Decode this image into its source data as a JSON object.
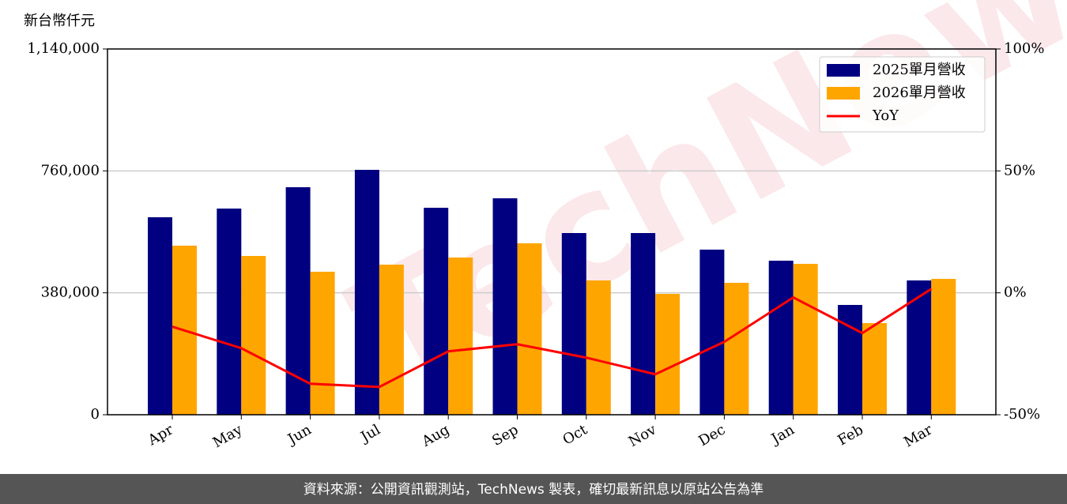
{
  "chart_data": {
    "type": "bar",
    "y_label": "新台幣仟元",
    "watermark": "TechNews",
    "footer": "資料來源：公開資訊觀測站，TechNews 製表，確切最新訊息以原站公告為準",
    "categories": [
      "Apr",
      "May",
      "Jun",
      "Jul",
      "Aug",
      "Sep",
      "Oct",
      "Nov",
      "Dec",
      "Jan",
      "Feb",
      "Mar"
    ],
    "series": [
      {
        "name": "2025單月營收",
        "color": "#000080",
        "values": [
          615500,
          642600,
          709100,
          763300,
          645100,
          674600,
          566300,
          566300,
          514600,
          480100,
          342200,
          418600
        ]
      },
      {
        "name": "2026單月營收",
        "color": "#ffa500",
        "values": [
          526900,
          494900,
          445700,
          467800,
          490000,
          534300,
          418600,
          376700,
          411200,
          470300,
          285600,
          423500
        ]
      },
      {
        "name": "YoY",
        "color": "#ff0000",
        "type": "line",
        "axis": "y2",
        "values": [
          -13.9,
          -22.7,
          -37.3,
          -38.6,
          -24.0,
          -21.1,
          -26.6,
          -33.4,
          -20.1,
          -1.9,
          -16.5,
          1.6
        ]
      }
    ],
    "ylim": [
      0,
      1140000
    ],
    "yticks": [
      0,
      {
        "value": 380000,
        "label": "380,000"
      },
      {
        "value": 760000,
        "label": "760,000"
      },
      {
        "value": 1140000,
        "label": "1,140,000"
      }
    ],
    "y2lim": [
      -50,
      100
    ],
    "y2ticks": [
      {
        "value": -50,
        "label": "-50%"
      },
      {
        "value": 0,
        "label": "0%"
      },
      {
        "value": 50,
        "label": "50%"
      },
      {
        "value": 100,
        "label": "100%"
      }
    ],
    "grid": true,
    "legend": "upper right"
  }
}
